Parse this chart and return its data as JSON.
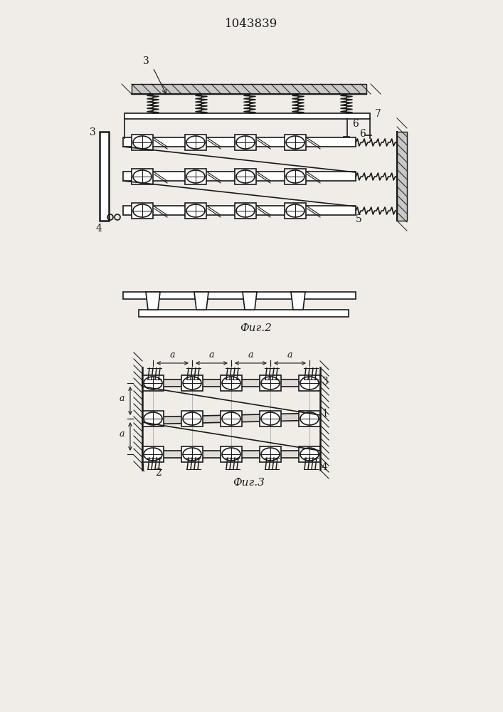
{
  "title": "1043839",
  "fig2_label": "Фиг.2",
  "fig3_label": "Фиг.3",
  "bg_color": "#f0ede8",
  "line_color": "#1a1a1a",
  "lw_main": 1.2,
  "lw_thin": 0.8,
  "lw_thick": 1.8
}
